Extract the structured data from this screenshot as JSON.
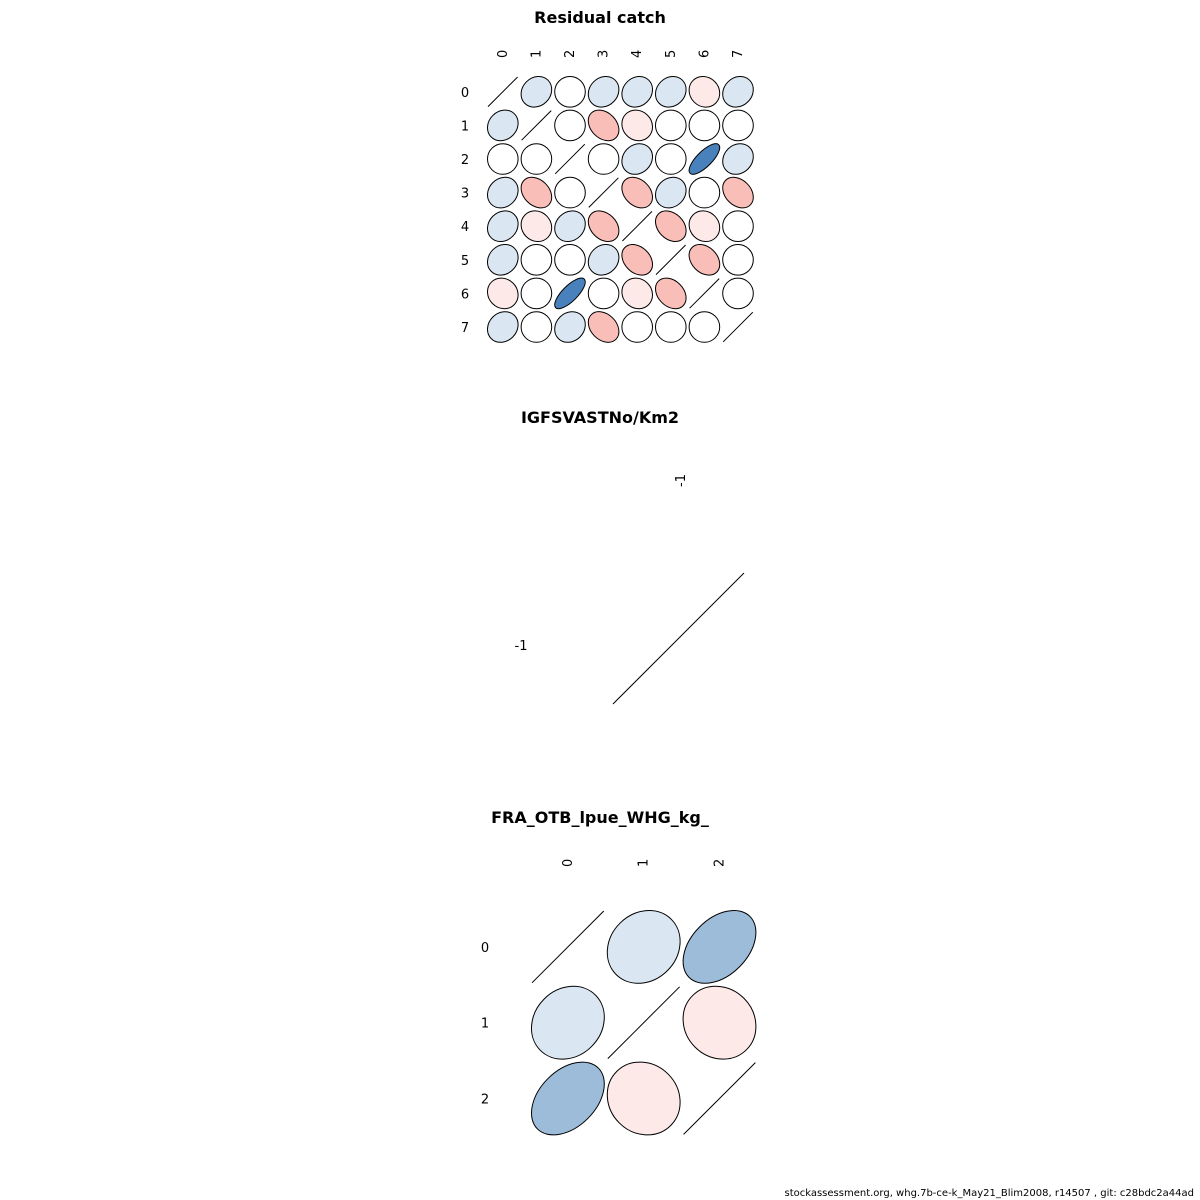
{
  "footer": "stockassessment.org, whg.7b-ce-k_May21_Blim2008, r14507 , git: c28bdc2a44ad",
  "chart_data": [
    {
      "type": "heatmap",
      "subtype": "correlation-ellipse",
      "title": "Residual catch",
      "labels": [
        "0",
        "1",
        "2",
        "3",
        "4",
        "5",
        "6",
        "7"
      ],
      "matrix": [
        [
          1,
          0.15,
          0.0,
          0.15,
          0.15,
          0.15,
          -0.1,
          0.15
        ],
        [
          0.15,
          1,
          0.0,
          -0.3,
          -0.1,
          0.0,
          0.0,
          0.0
        ],
        [
          0.0,
          0.0,
          1,
          0.0,
          0.15,
          0.0,
          0.75,
          0.15
        ],
        [
          0.15,
          -0.3,
          0.0,
          1,
          -0.3,
          0.15,
          0.0,
          -0.3
        ],
        [
          0.15,
          -0.1,
          0.15,
          -0.3,
          1,
          -0.3,
          -0.1,
          0.0
        ],
        [
          0.15,
          0.0,
          0.0,
          0.15,
          -0.3,
          1,
          -0.3,
          0.0
        ],
        [
          -0.1,
          0.0,
          0.75,
          0.0,
          -0.1,
          -0.3,
          1,
          0.0
        ],
        [
          0.15,
          0.0,
          0.15,
          -0.3,
          0.0,
          0.0,
          0.0,
          1
        ]
      ],
      "diagonal": "line",
      "colorscale": {
        "negative": "#2166ac",
        "neutral": "#ffffff",
        "positive": "#b2182b"
      }
    },
    {
      "type": "heatmap",
      "subtype": "correlation-ellipse",
      "title": "IGFSVASTNo/Km2",
      "labels": [
        "-1"
      ],
      "matrix": [
        [
          1
        ]
      ],
      "diagonal": "line"
    },
    {
      "type": "heatmap",
      "subtype": "correlation-ellipse",
      "title": "FRA_OTB_lpue_WHG_kg_",
      "labels": [
        "0",
        "1",
        "2"
      ],
      "matrix": [
        [
          1,
          0.15,
          0.4
        ],
        [
          0.15,
          1,
          -0.1
        ],
        [
          0.4,
          -0.1,
          1
        ]
      ],
      "diagonal": "line"
    }
  ]
}
